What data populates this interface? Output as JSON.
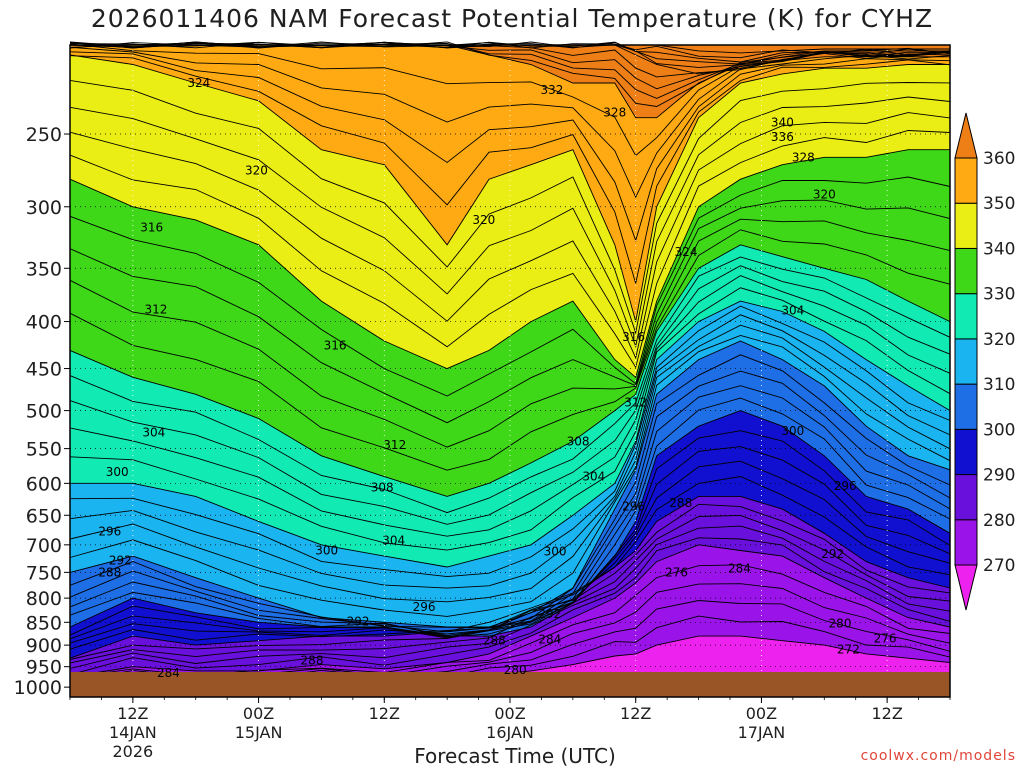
{
  "title": "2026011406 NAM Forecast Potential Temperature (K) for CYHZ",
  "credit": "coolwx.com/models",
  "chart_data": {
    "type": "heatmap",
    "title": "2026011406 NAM Forecast Potential Temperature (K) for CYHZ",
    "xlabel": "Forecast Time (UTC)",
    "ylabel": "",
    "y_ticks": [
      250,
      300,
      350,
      400,
      450,
      500,
      550,
      600,
      650,
      700,
      750,
      800,
      850,
      900,
      950,
      1000
    ],
    "x_ticks": [
      {
        "hour": 6,
        "l1": "12Z",
        "l2": "14JAN",
        "l3": "2026"
      },
      {
        "hour": 18,
        "l1": "00Z",
        "l2": "15JAN",
        "l3": ""
      },
      {
        "hour": 30,
        "l1": "12Z",
        "l2": "",
        "l3": ""
      },
      {
        "hour": 42,
        "l1": "00Z",
        "l2": "16JAN",
        "l3": ""
      },
      {
        "hour": 54,
        "l1": "12Z",
        "l2": "",
        "l3": ""
      },
      {
        "hour": 66,
        "l1": "00Z",
        "l2": "17JAN",
        "l3": ""
      },
      {
        "hour": 78,
        "l1": "12Z",
        "l2": "",
        "l3": ""
      }
    ],
    "x_range_hours": [
      0,
      84
    ],
    "y_range_hPa": [
      200,
      1025
    ],
    "y_scale": "log",
    "grid": true,
    "colorbar": {
      "levels": [
        270,
        280,
        290,
        300,
        310,
        320,
        330,
        340,
        350,
        360
      ],
      "colors": [
        "#ee22ee",
        "#9a14ea",
        "#6a10dc",
        "#1210d0",
        "#1e6ee6",
        "#1ab4f0",
        "#12eab4",
        "#3ed818",
        "#eaee14",
        "#ffaa12",
        "#ee7e16"
      ]
    },
    "ground_color": "#9a5526",
    "contour_interval_K": 2,
    "series": [
      {
        "x": [
          0,
          6,
          12,
          18,
          24,
          30,
          36,
          40,
          44,
          48,
          52,
          54,
          56,
          60,
          64,
          68,
          72,
          76,
          80,
          84
        ],
        "y": [
          1000,
          990,
          985,
          985,
          980,
          980,
          975,
          970,
          960,
          945,
          925,
          920,
          900,
          880,
          880,
          890,
          900,
          920,
          930,
          940
        ]
      },
      {
        "x": [
          0,
          6,
          12,
          18,
          24,
          30,
          36,
          40,
          44,
          48,
          52,
          54,
          56,
          60,
          64,
          68,
          72,
          76,
          80,
          84
        ],
        "y": [
          975,
          950,
          960,
          960,
          945,
          955,
          940,
          920,
          880,
          840,
          800,
          770,
          730,
          700,
          710,
          720,
          760,
          800,
          840,
          860
        ]
      },
      {
        "x": [
          0,
          6,
          12,
          18,
          24,
          30,
          36,
          40,
          44,
          48,
          52,
          54,
          56,
          60,
          64,
          68,
          72,
          76,
          80,
          84
        ],
        "y": [
          930,
          880,
          900,
          890,
          880,
          880,
          870,
          850,
          820,
          790,
          740,
          710,
          660,
          620,
          620,
          640,
          680,
          730,
          760,
          780
        ]
      },
      {
        "x": [
          0,
          6,
          12,
          18,
          24,
          30,
          36,
          40,
          44,
          48,
          52,
          54,
          56,
          60,
          64,
          68,
          72,
          76,
          80,
          84
        ],
        "y": [
          860,
          800,
          830,
          850,
          860,
          860,
          880,
          880,
          860,
          810,
          720,
          660,
          560,
          520,
          500,
          520,
          560,
          620,
          640,
          680
        ]
      },
      {
        "x": [
          0,
          6,
          12,
          18,
          24,
          30,
          36,
          40,
          44,
          48,
          52,
          54,
          56,
          60,
          64,
          68,
          72,
          76,
          80,
          84
        ],
        "y": [
          750,
          720,
          760,
          800,
          840,
          850,
          860,
          860,
          830,
          780,
          640,
          580,
          480,
          440,
          420,
          440,
          470,
          520,
          560,
          580
        ]
      },
      {
        "x": [
          0,
          6,
          12,
          18,
          24,
          30,
          36,
          40,
          44,
          48,
          52,
          54,
          56,
          60,
          64,
          68,
          72,
          76,
          80,
          84
        ],
        "y": [
          600,
          600,
          620,
          660,
          700,
          720,
          740,
          720,
          700,
          650,
          600,
          540,
          440,
          400,
          380,
          390,
          410,
          440,
          470,
          500
        ]
      },
      {
        "x": [
          0,
          6,
          12,
          18,
          24,
          30,
          36,
          40,
          44,
          48,
          52,
          54,
          56,
          60,
          64,
          68,
          72,
          76,
          80,
          84
        ],
        "y": [
          430,
          460,
          480,
          510,
          560,
          590,
          620,
          600,
          570,
          540,
          500,
          480,
          410,
          350,
          330,
          340,
          350,
          360,
          380,
          400
        ]
      },
      {
        "x": [
          0,
          6,
          12,
          18,
          24,
          30,
          36,
          40,
          44,
          48,
          52,
          54,
          56,
          60,
          64,
          68,
          72,
          76,
          80,
          84
        ],
        "y": [
          280,
          300,
          310,
          330,
          380,
          420,
          450,
          430,
          400,
          380,
          440,
          460,
          380,
          300,
          280,
          270,
          265,
          265,
          260,
          260
        ]
      },
      {
        "x": [
          0,
          6,
          12,
          18,
          24,
          30,
          36,
          40,
          44,
          48,
          52,
          54,
          56,
          60,
          64,
          68,
          72,
          76,
          80,
          84
        ],
        "y": [
          205,
          210,
          220,
          230,
          260,
          270,
          330,
          280,
          270,
          260,
          330,
          400,
          300,
          240,
          220,
          215,
          212,
          212,
          210,
          210
        ]
      },
      {
        "x": [
          0,
          6,
          12,
          18,
          24,
          30,
          36,
          40,
          44,
          48,
          52,
          54,
          56,
          60,
          64,
          68,
          72,
          76,
          80,
          84
        ],
        "y": [
          200,
          200,
          200,
          200,
          200,
          200,
          200,
          205,
          210,
          220,
          220,
          240,
          240,
          220,
          210,
          205,
          203,
          203,
          203,
          203
        ]
      },
      {
        "x": [
          0,
          6,
          12,
          18,
          24,
          30,
          36,
          40,
          44,
          48,
          52,
          54,
          56,
          60,
          64,
          68,
          72,
          76,
          80,
          84
        ],
        "y": [
          200,
          200,
          200,
          200,
          200,
          200,
          200,
          200,
          200,
          200,
          200,
          205,
          210,
          215,
          212,
          208,
          206,
          206,
          206,
          206
        ]
      },
      {
        "x": [
          0,
          6,
          12,
          18,
          24,
          30,
          36,
          40,
          44,
          48,
          52,
          54,
          56,
          60,
          64,
          68,
          72,
          76,
          80,
          84
        ],
        "y": [
          200,
          200,
          200,
          200,
          200,
          200,
          200,
          200,
          200,
          200,
          200,
          200,
          200,
          203,
          204,
          203,
          202,
          202,
          202,
          202
        ]
      }
    ],
    "contour_labels": [
      {
        "text": "324",
        "x": 12.3,
        "y": 220
      },
      {
        "text": "332",
        "x": 46.0,
        "y": 224
      },
      {
        "text": "328",
        "x": 52.0,
        "y": 237
      },
      {
        "text": "340",
        "x": 68.0,
        "y": 243
      },
      {
        "text": "336",
        "x": 68.0,
        "y": 252
      },
      {
        "text": "328",
        "x": 70.0,
        "y": 265
      },
      {
        "text": "320",
        "x": 17.8,
        "y": 274
      },
      {
        "text": "320",
        "x": 72.0,
        "y": 291
      },
      {
        "text": "316",
        "x": 7.8,
        "y": 316
      },
      {
        "text": "320",
        "x": 39.5,
        "y": 310
      },
      {
        "text": "324",
        "x": 58.8,
        "y": 336
      },
      {
        "text": "312",
        "x": 8.2,
        "y": 388
      },
      {
        "text": "304",
        "x": 69.0,
        "y": 389
      },
      {
        "text": "316",
        "x": 25.3,
        "y": 425
      },
      {
        "text": "316",
        "x": 53.8,
        "y": 416
      },
      {
        "text": "312",
        "x": 54.0,
        "y": 490
      },
      {
        "text": "304",
        "x": 8.0,
        "y": 528
      },
      {
        "text": "300",
        "x": 69.0,
        "y": 526
      },
      {
        "text": "312",
        "x": 31.0,
        "y": 545
      },
      {
        "text": "308",
        "x": 48.5,
        "y": 540
      },
      {
        "text": "300",
        "x": 4.5,
        "y": 583
      },
      {
        "text": "304",
        "x": 50.0,
        "y": 590
      },
      {
        "text": "296",
        "x": 74.0,
        "y": 604
      },
      {
        "text": "308",
        "x": 29.8,
        "y": 606
      },
      {
        "text": "288",
        "x": 58.3,
        "y": 630
      },
      {
        "text": "296",
        "x": 53.8,
        "y": 636
      },
      {
        "text": "296",
        "x": 3.8,
        "y": 677
      },
      {
        "text": "304",
        "x": 30.9,
        "y": 692
      },
      {
        "text": "300",
        "x": 24.5,
        "y": 710
      },
      {
        "text": "300",
        "x": 46.3,
        "y": 712
      },
      {
        "text": "292",
        "x": 72.8,
        "y": 716
      },
      {
        "text": "292",
        "x": 4.8,
        "y": 728
      },
      {
        "text": "284",
        "x": 63.9,
        "y": 743
      },
      {
        "text": "276",
        "x": 57.9,
        "y": 750
      },
      {
        "text": "288",
        "x": 3.8,
        "y": 750
      },
      {
        "text": "296",
        "x": 33.8,
        "y": 818
      },
      {
        "text": "292",
        "x": 45.8,
        "y": 832
      },
      {
        "text": "292",
        "x": 27.5,
        "y": 848
      },
      {
        "text": "280",
        "x": 73.5,
        "y": 853
      },
      {
        "text": "284",
        "x": 45.8,
        "y": 887
      },
      {
        "text": "288",
        "x": 40.5,
        "y": 890
      },
      {
        "text": "276",
        "x": 77.8,
        "y": 885
      },
      {
        "text": "272",
        "x": 74.3,
        "y": 910
      },
      {
        "text": "288",
        "x": 23.1,
        "y": 935
      },
      {
        "text": "280",
        "x": 42.5,
        "y": 958
      },
      {
        "text": "284",
        "x": 9.4,
        "y": 965
      }
    ]
  }
}
